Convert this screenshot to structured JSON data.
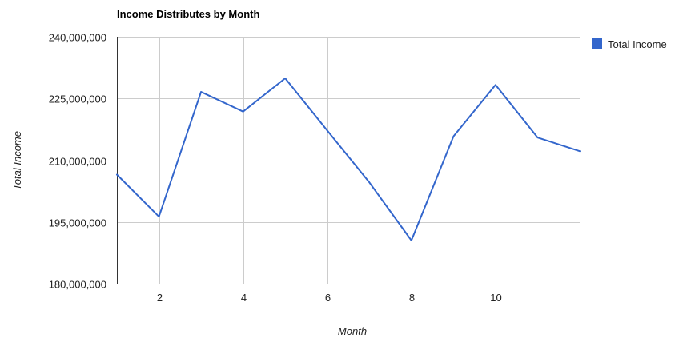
{
  "chart_data": {
    "type": "line",
    "title": "Income Distributes by Month",
    "xlabel": "Month",
    "ylabel": "Total Income",
    "xlim": [
      1,
      12
    ],
    "ylim": [
      180000000,
      240000000
    ],
    "x_ticks": [
      2,
      4,
      6,
      8,
      10
    ],
    "x_tick_labels": [
      "2",
      "4",
      "6",
      "8",
      "10"
    ],
    "y_ticks": [
      180000000,
      195000000,
      210000000,
      225000000,
      240000000
    ],
    "y_tick_labels": [
      "180,000,000",
      "195,000,000",
      "210,000,000",
      "225,000,000",
      "240,000,000"
    ],
    "grid": true,
    "legend_position": "right",
    "series": [
      {
        "name": "Total Income",
        "color": "#3366cc",
        "x": [
          1,
          2,
          3,
          4,
          5,
          6,
          7,
          8,
          9,
          10,
          11,
          12
        ],
        "values": [
          206500000,
          196300000,
          226600000,
          221800000,
          229900000,
          217200000,
          204600000,
          190500000,
          215800000,
          228300000,
          215500000,
          212200000
        ]
      }
    ]
  }
}
